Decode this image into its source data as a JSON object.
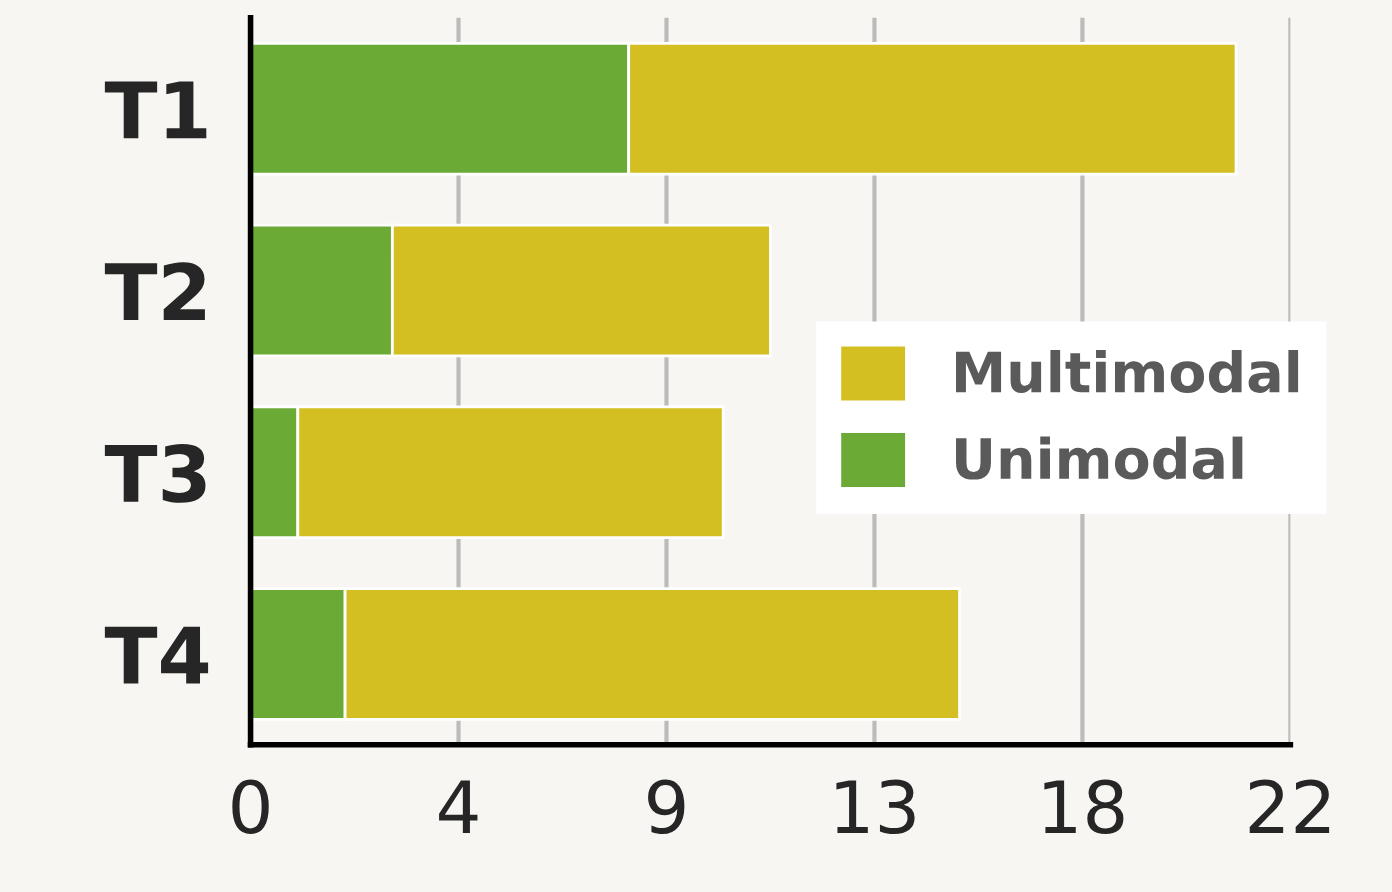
{
  "chart_data": {
    "type": "bar",
    "orientation": "horizontal",
    "stacked": true,
    "categories": [
      "T1",
      "T2",
      "T3",
      "T4"
    ],
    "series": [
      {
        "name": "Unimodal",
        "color": "#6aaa35",
        "values": [
          8,
          3,
          1,
          2
        ]
      },
      {
        "name": "Multimodal",
        "color": "#d3bf22",
        "values": [
          12.85,
          8,
          9,
          13
        ]
      }
    ],
    "xlim": [
      0,
      22
    ],
    "xticks": [
      0,
      {
        "value": 4.4,
        "label": "4"
      },
      {
        "value": 8.8,
        "label": "9"
      },
      {
        "value": 13.2,
        "label": "13"
      },
      {
        "value": 17.6,
        "label": "18"
      },
      22
    ],
    "grid": "x",
    "legend": "right"
  }
}
